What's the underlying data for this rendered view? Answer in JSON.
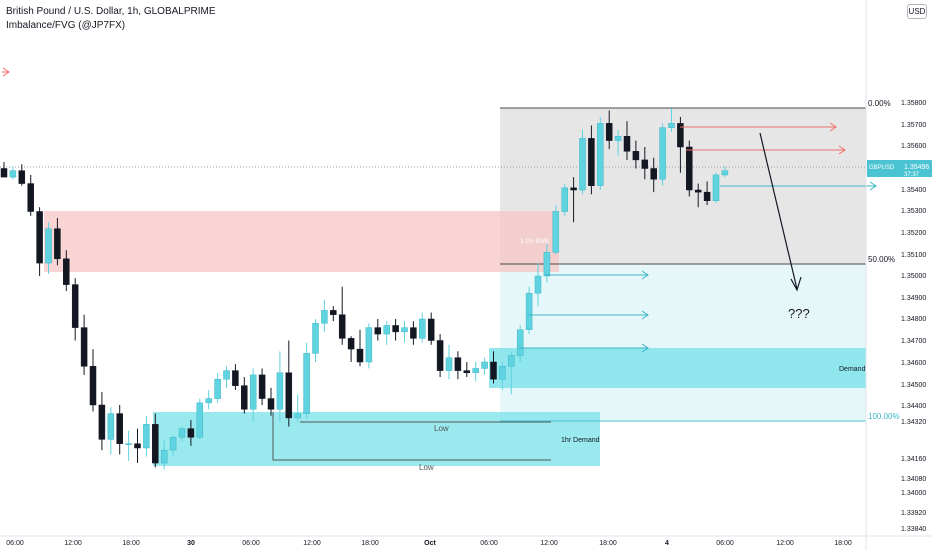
{
  "header": {
    "title": "British Pound / U.S. Dollar, 1h, GLOBALPRIME",
    "indicator": "Imbalance/FVG (@JP7FX)",
    "currency_button": "USD"
  },
  "colors": {
    "bull": "#5fd3e0",
    "bear": "#131722",
    "supply_zone": "#f5c6c6",
    "demand_zone": "#7fe3ea",
    "premium_box": "#e6e6e6",
    "discount_box": "#e6f7f9",
    "arrow_red": "#ef6f6c",
    "arrow_cyan": "#3ab7c9",
    "price_label": "#4cc3d3"
  },
  "chart_data": {
    "type": "candlestick",
    "symbol": "GBPUSD",
    "timeframe": "1h",
    "y_axis": {
      "ylim": [
        1.3378,
        1.3588
      ],
      "ticks": [
        "1.35800",
        "1.35700",
        "1.35600",
        "1.35500",
        "1.35400",
        "1.35300",
        "1.35200",
        "1.35100",
        "1.35000",
        "1.34900",
        "1.34800",
        "1.34700",
        "1.34600",
        "1.34500",
        "1.34400",
        "1.34320",
        "1.34160",
        "1.34080",
        "1.34000",
        "1.33920",
        "1.33840"
      ]
    },
    "x_axis": {
      "ticks": [
        "06:00",
        "12:00",
        "18:00",
        "30",
        "06:00",
        "12:00",
        "18:00",
        "Oct",
        "06:00",
        "12:00",
        "18:00",
        "4",
        "06:00",
        "12:00",
        "18:00"
      ]
    },
    "current_price": {
      "symbol": "GBPUSD",
      "value": "1.35496",
      "countdown": "37:37"
    },
    "candles": [
      [
        1.355,
        1.3553,
        1.3546,
        1.3546
      ],
      [
        1.3546,
        1.3551,
        1.3545,
        1.3549
      ],
      [
        1.3549,
        1.3552,
        1.3542,
        1.3543
      ],
      [
        1.3543,
        1.3547,
        1.3528,
        1.353
      ],
      [
        1.353,
        1.3532,
        1.35,
        1.3506
      ],
      [
        1.3506,
        1.3525,
        1.3501,
        1.3522
      ],
      [
        1.3522,
        1.3527,
        1.3505,
        1.3508
      ],
      [
        1.3508,
        1.3512,
        1.3493,
        1.3496
      ],
      [
        1.3496,
        1.3499,
        1.347,
        1.3476
      ],
      [
        1.3476,
        1.3482,
        1.3454,
        1.3458
      ],
      [
        1.3458,
        1.3466,
        1.3437,
        1.344
      ],
      [
        1.344,
        1.3446,
        1.3419,
        1.3424
      ],
      [
        1.3424,
        1.3439,
        1.3417,
        1.3436
      ],
      [
        1.3436,
        1.344,
        1.3417,
        1.3422
      ],
      [
        1.3422,
        1.3428,
        1.3414,
        1.3422
      ],
      [
        1.3422,
        1.3429,
        1.3413,
        1.342
      ],
      [
        1.342,
        1.3435,
        1.3416,
        1.3431
      ],
      [
        1.3431,
        1.3436,
        1.3411,
        1.3413
      ],
      [
        1.3413,
        1.3424,
        1.341,
        1.3419
      ],
      [
        1.3419,
        1.3426,
        1.3416,
        1.3425
      ],
      [
        1.3425,
        1.343,
        1.3423,
        1.3429
      ],
      [
        1.3429,
        1.3433,
        1.3421,
        1.3425
      ],
      [
        1.3425,
        1.3443,
        1.3424,
        1.3441
      ],
      [
        1.3441,
        1.3447,
        1.3438,
        1.3443
      ],
      [
        1.3443,
        1.3455,
        1.3441,
        1.3452
      ],
      [
        1.3452,
        1.3458,
        1.3448,
        1.3456
      ],
      [
        1.3456,
        1.3459,
        1.3447,
        1.3449
      ],
      [
        1.3449,
        1.3453,
        1.3436,
        1.3438
      ],
      [
        1.3438,
        1.3457,
        1.3432,
        1.3454
      ],
      [
        1.3454,
        1.3457,
        1.344,
        1.3443
      ],
      [
        1.3443,
        1.3448,
        1.3435,
        1.3438
      ],
      [
        1.3438,
        1.3465,
        1.3432,
        1.3455
      ],
      [
        1.3455,
        1.347,
        1.343,
        1.3434
      ],
      [
        1.3434,
        1.3445,
        1.3432,
        1.3436
      ],
      [
        1.3436,
        1.3469,
        1.3434,
        1.3464
      ],
      [
        1.3464,
        1.348,
        1.346,
        1.3478
      ],
      [
        1.3478,
        1.3489,
        1.3474,
        1.3484
      ],
      [
        1.3484,
        1.3486,
        1.3479,
        1.3482
      ],
      [
        1.3482,
        1.3495,
        1.3468,
        1.3471
      ],
      [
        1.3471,
        1.3472,
        1.346,
        1.3466
      ],
      [
        1.3466,
        1.3475,
        1.3458,
        1.346
      ],
      [
        1.346,
        1.3478,
        1.3457,
        1.3476
      ],
      [
        1.3476,
        1.348,
        1.347,
        1.3473
      ],
      [
        1.3473,
        1.3479,
        1.3468,
        1.3477
      ],
      [
        1.3477,
        1.348,
        1.347,
        1.3474
      ],
      [
        1.3474,
        1.3479,
        1.3469,
        1.3476
      ],
      [
        1.3476,
        1.3479,
        1.3468,
        1.3471
      ],
      [
        1.3471,
        1.3483,
        1.3469,
        1.348
      ],
      [
        1.348,
        1.3483,
        1.3468,
        1.347
      ],
      [
        1.347,
        1.3473,
        1.3453,
        1.3456
      ],
      [
        1.3456,
        1.3468,
        1.3452,
        1.3462
      ],
      [
        1.3462,
        1.3465,
        1.3452,
        1.3456
      ],
      [
        1.3456,
        1.346,
        1.3453,
        1.3455
      ],
      [
        1.3455,
        1.346,
        1.3451,
        1.3457
      ],
      [
        1.3457,
        1.3462,
        1.3454,
        1.346
      ],
      [
        1.346,
        1.3465,
        1.345,
        1.3452
      ],
      [
        1.3452,
        1.346,
        1.3447,
        1.3458
      ],
      [
        1.3458,
        1.3465,
        1.3445,
        1.3463
      ],
      [
        1.3463,
        1.3477,
        1.346,
        1.3475
      ],
      [
        1.3475,
        1.3495,
        1.3473,
        1.3492
      ],
      [
        1.3492,
        1.3506,
        1.3486,
        1.35
      ],
      [
        1.35,
        1.3515,
        1.3497,
        1.3511
      ],
      [
        1.3511,
        1.3533,
        1.351,
        1.353
      ],
      [
        1.353,
        1.3543,
        1.3528,
        1.3541
      ],
      [
        1.3541,
        1.3546,
        1.3525,
        1.354
      ],
      [
        1.354,
        1.3568,
        1.3538,
        1.3564
      ],
      [
        1.3564,
        1.357,
        1.3538,
        1.3542
      ],
      [
        1.3542,
        1.3574,
        1.354,
        1.3571
      ],
      [
        1.3571,
        1.3577,
        1.3559,
        1.3563
      ],
      [
        1.3563,
        1.3568,
        1.3556,
        1.3565
      ],
      [
        1.3565,
        1.3572,
        1.3554,
        1.3558
      ],
      [
        1.3558,
        1.3563,
        1.355,
        1.3554
      ],
      [
        1.3554,
        1.356,
        1.3545,
        1.355
      ],
      [
        1.355,
        1.3555,
        1.3539,
        1.3545
      ],
      [
        1.3545,
        1.3571,
        1.3542,
        1.3569
      ],
      [
        1.3569,
        1.3578,
        1.3567,
        1.3571
      ],
      [
        1.3571,
        1.3574,
        1.3548,
        1.356
      ],
      [
        1.356,
        1.3563,
        1.3537,
        1.354
      ],
      [
        1.354,
        1.3543,
        1.3532,
        1.3539
      ],
      [
        1.3539,
        1.3544,
        1.3533,
        1.3535
      ],
      [
        1.3535,
        1.3548,
        1.3534,
        1.3547
      ],
      [
        1.3547,
        1.3551,
        1.3546,
        1.3549
      ]
    ],
    "annotations": {
      "fib_labels": [
        "0.00%",
        "50.00%",
        "100.00%"
      ],
      "zone_labels": [
        "Demand",
        "1hr Demand"
      ],
      "low_labels": [
        "Low",
        "Low"
      ],
      "question": "???",
      "faint_label": "3.1%   BWB"
    }
  }
}
